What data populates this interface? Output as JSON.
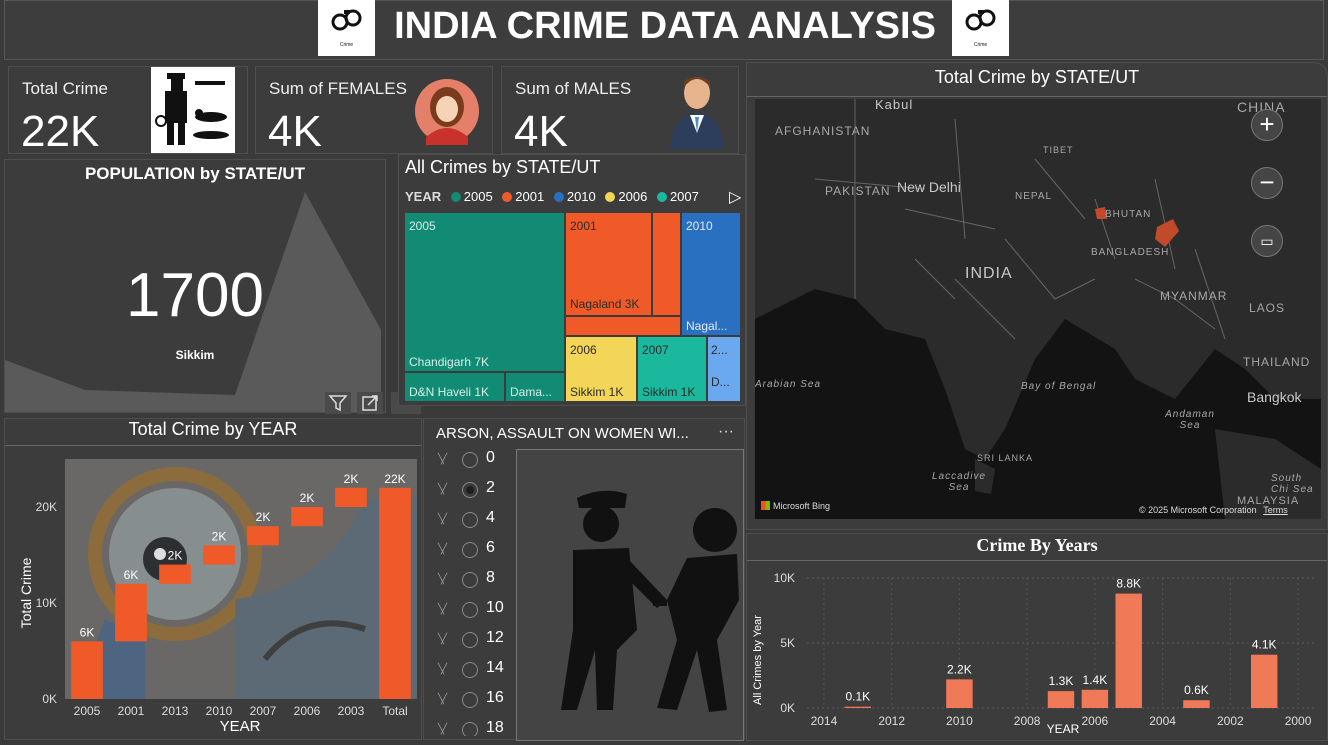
{
  "header": {
    "title": "INDIA CRIME DATA ANALYSIS",
    "logo_text": "Crime"
  },
  "kpis": [
    {
      "label": "Total Crime",
      "value": "22K",
      "icon": "detective-icon"
    },
    {
      "label": "Sum of FEMALES",
      "value": "4K",
      "icon": "female-avatar-icon"
    },
    {
      "label": "Sum of MALES",
      "value": "4K",
      "icon": "male-avatar-icon"
    }
  ],
  "population": {
    "title": "POPULATION by STATE/UT",
    "value": "1700",
    "state": "Sikkim"
  },
  "treemap": {
    "title": "All Crimes by STATE/UT",
    "legend_title": "YEAR",
    "legend": [
      {
        "name": "2005",
        "color": "#118b73"
      },
      {
        "name": "2001",
        "color": "#f05a28"
      },
      {
        "name": "2010",
        "color": "#2a70c0"
      },
      {
        "name": "2006",
        "color": "#f3d657"
      },
      {
        "name": "2007",
        "color": "#1ab89c"
      }
    ],
    "groups": {
      "g2005": "2005",
      "g2001": "2001",
      "g2010": "2010",
      "g2006": "2006",
      "g2007": "2007",
      "gsmall": "2...",
      "chandigarh": "Chandigarh 7K",
      "dnh": "D&N Haveli 1K",
      "daman": "Dama...",
      "nagaland": "Nagaland 3K",
      "nagal2": "Nagal...",
      "sikkim06": "Sikkim 1K",
      "sikkim07": "Sikkim 1K",
      "d_small": "D..."
    }
  },
  "slicer": {
    "title": "ARSON, ASSAULT ON WOMEN WI...",
    "options": [
      "0",
      "2",
      "4",
      "6",
      "8",
      "10",
      "12",
      "14",
      "16",
      "18"
    ],
    "selected": "2"
  },
  "map": {
    "title": "Total Crime by STATE/UT",
    "labels": {
      "kabul": "Kabul",
      "afghanistan": "AFGHANISTAN",
      "china": "CHINA",
      "pakistan": "PAKISTAN",
      "newdelhi": "New Delhi",
      "tibet": "TIBET",
      "nepal": "NEPAL",
      "bhutan": "BHUTAN",
      "india": "INDIA",
      "bangladesh": "BANGLADESH",
      "myanmar": "MYANMAR",
      "laos": "LAOS",
      "thailand": "THAILAND",
      "arabian": "Arabian Sea",
      "bay": "Bay of Bengal",
      "andaman": "Andaman Sea",
      "srilanka": "SRI LANKA",
      "laccadive": "Laccadive Sea",
      "bangkok": "Bangkok",
      "southchina": "South Chi Sea",
      "malaysia": "MALAYSIA"
    },
    "attribution": "© 2025 Microsoft Corporation",
    "terms": "Terms",
    "brand": "Microsoft Bing"
  },
  "waterfall": {
    "title": "Total Crime by YEAR",
    "xlabel": "YEAR",
    "ylabel": "Total Crime",
    "chart_data": {
      "type": "bar",
      "subtype": "waterfall",
      "categories": [
        "2005",
        "2001",
        "2013",
        "2010",
        "2007",
        "2006",
        "2003",
        "Total"
      ],
      "values": [
        6000,
        6000,
        2000,
        2000,
        2000,
        2000,
        2000,
        22000
      ],
      "data_labels": [
        "6K",
        "6K",
        "2K",
        "2K",
        "2K",
        "2K",
        "2K",
        "22K"
      ],
      "xlabel": "YEAR",
      "ylabel": "Total Crime",
      "yticks": [
        "0K",
        "10K",
        "20K"
      ],
      "ylim": [
        0,
        25000
      ]
    }
  },
  "years_chart": {
    "title": "Crime By Years",
    "chart_data": {
      "type": "bar",
      "x": [
        2013,
        2010,
        2007,
        2006,
        2005,
        2003,
        2001
      ],
      "values": [
        100,
        2200,
        1300,
        1400,
        8800,
        600,
        4100
      ],
      "data_labels": [
        "0.1K",
        "2.2K",
        "1.3K",
        "1.4K",
        "8.8K",
        "0.6K",
        "4.1K"
      ],
      "xlabel": "YEAR",
      "ylabel": "All Crimes by Year",
      "xticks": [
        "2014",
        "2012",
        "2010",
        "2008",
        "2006",
        "2004",
        "2002",
        "2000"
      ],
      "yticks": [
        "0K",
        "5K",
        "10K"
      ],
      "xlim": [
        2014.5,
        1999.5
      ],
      "ylim": [
        0,
        10000
      ],
      "grid": true,
      "color": "#f07a58"
    }
  },
  "colors": {
    "accent": "#f05a28",
    "bar": "#f07a58",
    "background": "#3a3a3a"
  }
}
